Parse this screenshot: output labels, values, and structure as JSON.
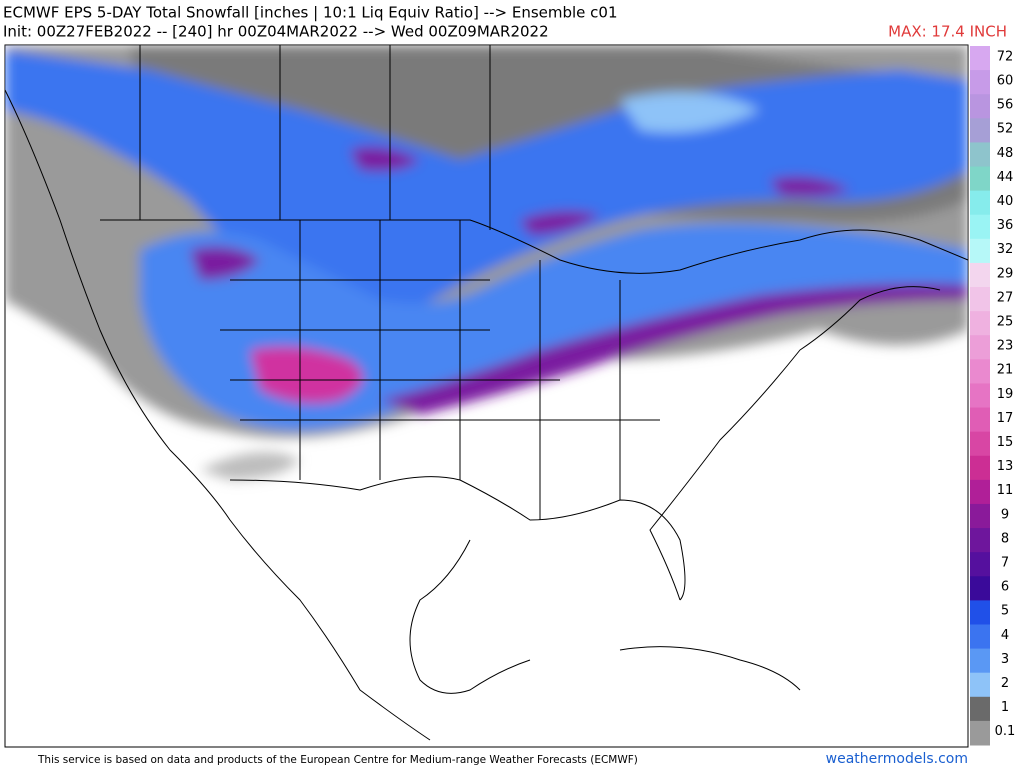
{
  "header": {
    "title": "ECMWF EPS 5-DAY Total Snowfall [inches | 10:1 Liq Equiv Ratio] --> Ensemble c01",
    "init": "Init: 00Z27FEB2022 -- [240] hr 00Z04MAR2022 --> Wed 00Z09MAR2022",
    "max": "MAX: 17.4 INCH"
  },
  "legend": {
    "levels": [
      {
        "label": "72",
        "color": "#d7a8f0"
      },
      {
        "label": "60",
        "color": "#c79be8"
      },
      {
        "label": "56",
        "color": "#b995e0"
      },
      {
        "label": "52",
        "color": "#a69fd6"
      },
      {
        "label": "48",
        "color": "#8ec4cc"
      },
      {
        "label": "44",
        "color": "#7fd6c8"
      },
      {
        "label": "40",
        "color": "#86ecec"
      },
      {
        "label": "36",
        "color": "#9af4f4"
      },
      {
        "label": "32",
        "color": "#b6f8f8"
      },
      {
        "label": "29",
        "color": "#f3d6ee"
      },
      {
        "label": "27",
        "color": "#f1c4e8"
      },
      {
        "label": "25",
        "color": "#efb1e0"
      },
      {
        "label": "23",
        "color": "#ec9ed8"
      },
      {
        "label": "21",
        "color": "#ea89cf"
      },
      {
        "label": "19",
        "color": "#e674c4"
      },
      {
        "label": "17",
        "color": "#e05db5"
      },
      {
        "label": "15",
        "color": "#d846a4"
      },
      {
        "label": "13",
        "color": "#cc2e94"
      },
      {
        "label": "11",
        "color": "#b01f98"
      },
      {
        "label": "9",
        "color": "#8a1a9a"
      },
      {
        "label": "8",
        "color": "#6e169c"
      },
      {
        "label": "7",
        "color": "#55109e"
      },
      {
        "label": "6",
        "color": "#3a0a9a"
      },
      {
        "label": "5",
        "color": "#2050e8"
      },
      {
        "label": "4",
        "color": "#3b74f0"
      },
      {
        "label": "3",
        "color": "#5a98f4"
      },
      {
        "label": "2",
        "color": "#8ec3f8"
      },
      {
        "label": "1",
        "color": "#6a6a6a"
      },
      {
        "label": "0.1",
        "color": "#9a9a9a"
      }
    ]
  },
  "footer": {
    "notice": "This service is based on data and products of the European Centre for Medium-range Weather Forecasts (ECMWF)",
    "site": "weathermodels.com"
  }
}
